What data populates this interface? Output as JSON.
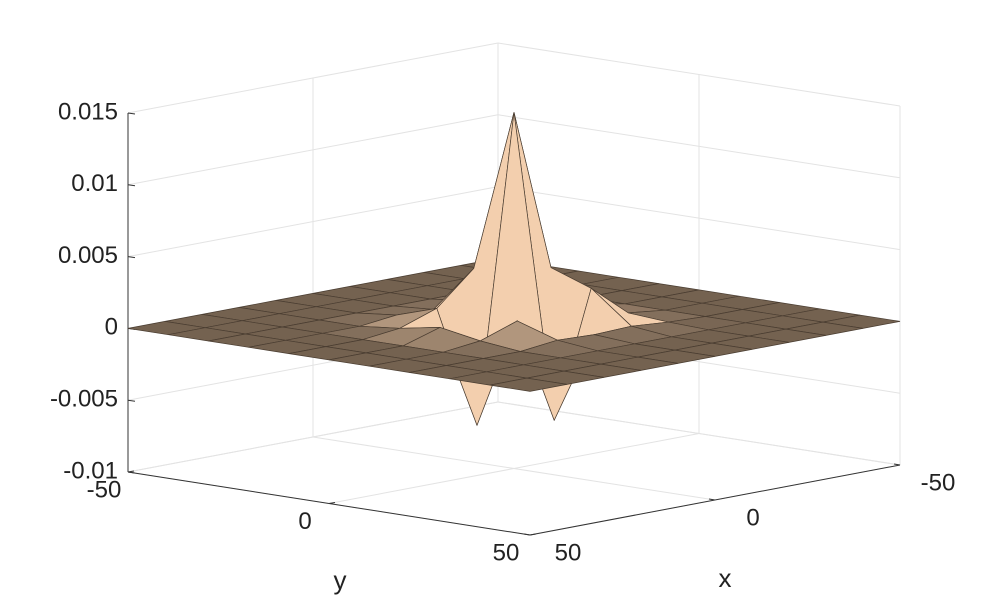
{
  "chart_data": {
    "type": "surface",
    "xlabel": "x",
    "ylabel": "y",
    "x": [
      -50,
      -40,
      -30,
      -20,
      -10,
      0,
      10,
      20,
      30,
      40,
      50
    ],
    "y": [
      -50,
      -40,
      -30,
      -20,
      -10,
      0,
      10,
      20,
      30,
      40,
      50
    ],
    "z": [
      [
        0,
        0,
        0,
        0,
        0,
        0,
        0,
        0,
        0,
        0,
        0
      ],
      [
        0,
        0,
        0,
        0,
        0,
        0,
        0,
        0,
        0,
        0,
        0
      ],
      [
        0,
        0,
        0,
        0,
        0,
        0,
        0,
        0,
        0,
        0,
        0
      ],
      [
        0,
        0,
        0,
        0.0001,
        0.0003,
        0.0005,
        0.0003,
        0.0001,
        0,
        0,
        0
      ],
      [
        0,
        0,
        0,
        0.0003,
        0.0025,
        0.0035,
        0.0025,
        0.0003,
        0,
        0,
        0
      ],
      [
        0,
        0,
        0,
        0.0002,
        0.0035,
        0.0148,
        -0.0062,
        0.0002,
        0,
        0,
        0
      ],
      [
        0,
        0,
        0,
        0.0003,
        0.0012,
        -0.0065,
        0.0012,
        0.0003,
        0,
        0,
        0
      ],
      [
        0,
        0,
        0,
        0,
        0.0003,
        0.0008,
        0.0003,
        0,
        0,
        0,
        0
      ],
      [
        0,
        0,
        0,
        0,
        0,
        0,
        0,
        0,
        0,
        0,
        0
      ],
      [
        0,
        0,
        0,
        0,
        0,
        0,
        0,
        0,
        0,
        0,
        0
      ],
      [
        0,
        0,
        0,
        0,
        0,
        0,
        0,
        0,
        0,
        0,
        0
      ]
    ],
    "xlim": [
      -50,
      50
    ],
    "ylim": [
      -50,
      50
    ],
    "zlim": [
      -0.01,
      0.015
    ],
    "xticks": [
      -50,
      0,
      50
    ],
    "yticks": [
      -50,
      0,
      50
    ],
    "zticks": [
      -0.01,
      -0.005,
      0,
      0.005,
      0.01,
      0.015
    ],
    "grid": true,
    "face_color": "#f3cfae",
    "edge_color": "#4a3d31"
  }
}
